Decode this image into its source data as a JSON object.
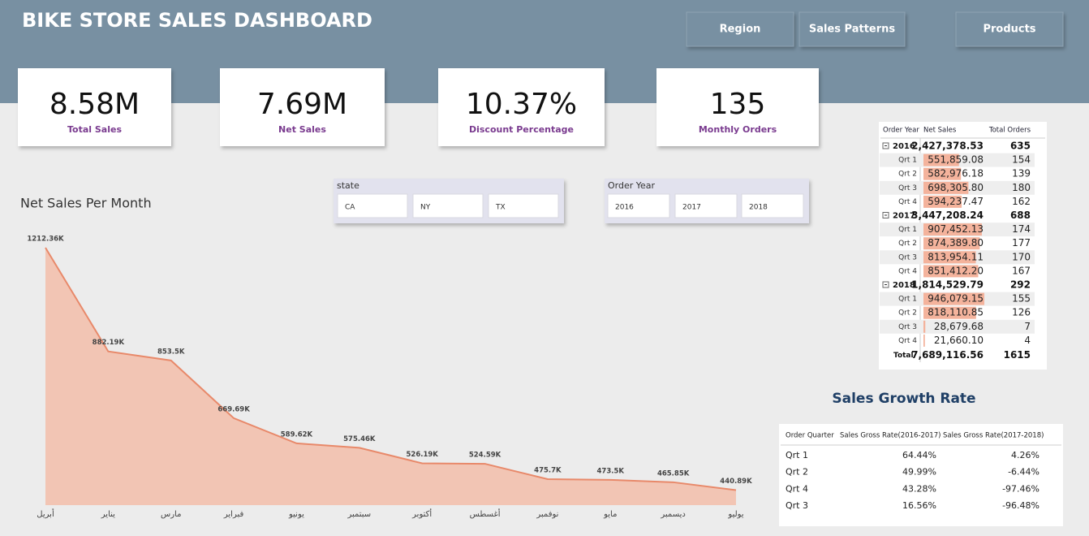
{
  "header": {
    "title": "BIKE STORE SALES DASHBOARD",
    "nav": [
      "Region",
      "Sales Patterns",
      "Products"
    ]
  },
  "kpis": [
    {
      "value": "8.58M",
      "label": "Total Sales"
    },
    {
      "value": "7.69M",
      "label": "Net Sales"
    },
    {
      "value": "10.37%",
      "label": "Discount Percentage"
    },
    {
      "value": "135",
      "label": "Monthly Orders"
    }
  ],
  "slicers": [
    {
      "title": "state",
      "options": [
        "CA",
        "NY",
        "TX"
      ]
    },
    {
      "title": "Order Year",
      "options": [
        "2016",
        "2017",
        "2018"
      ]
    }
  ],
  "chart_data": {
    "type": "area",
    "title": "Net Sales Per Month",
    "categories": [
      "أبريل",
      "يناير",
      "مارس",
      "فبراير",
      "يونيو",
      "سبتمبر",
      "أكتوبر",
      "أغسطس",
      "نوفمبر",
      "مايو",
      "ديسمبر",
      "يوليو"
    ],
    "values": [
      1212.36,
      882.19,
      853.5,
      669.69,
      589.62,
      575.46,
      526.19,
      524.59,
      475.7,
      473.5,
      465.85,
      440.89
    ],
    "value_labels": [
      "1212.36K",
      "882.19K",
      "853.5K",
      "669.69K",
      "589.62K",
      "575.46K",
      "526.19K",
      "524.59K",
      "475.7K",
      "473.5K",
      "465.85K",
      "440.89K"
    ],
    "color": "#e8896a",
    "fill": "#f2c5b4",
    "ylim": [
      393,
      1212.36
    ]
  },
  "matrix": {
    "columns": [
      "Order Year",
      "Net Sales",
      "Total Orders"
    ],
    "groups": [
      {
        "year": "2016",
        "net_sales": {
          "value": 2427378.53,
          "label": "2,427,378.53"
        },
        "orders": "635",
        "quarters": [
          {
            "name": "Qrt 1",
            "net_sales": {
              "value": 551859.08,
              "label": "551,859.08"
            },
            "orders": "154"
          },
          {
            "name": "Qrt 2",
            "net_sales": {
              "value": 582976.18,
              "label": "582,976.18"
            },
            "orders": "139"
          },
          {
            "name": "Qrt 3",
            "net_sales": {
              "value": 698305.8,
              "label": "698,305.80"
            },
            "orders": "180"
          },
          {
            "name": "Qrt 4",
            "net_sales": {
              "value": 594237.47,
              "label": "594,237.47"
            },
            "orders": "162"
          }
        ]
      },
      {
        "year": "2017",
        "net_sales": {
          "value": 3447208.24,
          "label": "3,447,208.24"
        },
        "orders": "688",
        "quarters": [
          {
            "name": "Qrt 1",
            "net_sales": {
              "value": 907452.13,
              "label": "907,452.13"
            },
            "orders": "174"
          },
          {
            "name": "Qrt 2",
            "net_sales": {
              "value": 874389.8,
              "label": "874,389.80"
            },
            "orders": "177"
          },
          {
            "name": "Qrt 3",
            "net_sales": {
              "value": 813954.11,
              "label": "813,954.11"
            },
            "orders": "170"
          },
          {
            "name": "Qrt 4",
            "net_sales": {
              "value": 851412.2,
              "label": "851,412.20"
            },
            "orders": "167"
          }
        ]
      },
      {
        "year": "2018",
        "net_sales": {
          "value": 1814529.79,
          "label": "1,814,529.79"
        },
        "orders": "292",
        "quarters": [
          {
            "name": "Qrt 1",
            "net_sales": {
              "value": 946079.15,
              "label": "946,079.15"
            },
            "orders": "155"
          },
          {
            "name": "Qrt 2",
            "net_sales": {
              "value": 818110.85,
              "label": "818,110.85"
            },
            "orders": "126"
          },
          {
            "name": "Qrt 3",
            "net_sales": {
              "value": 28679.68,
              "label": "28,679.68"
            },
            "orders": "7"
          },
          {
            "name": "Qrt 4",
            "net_sales": {
              "value": 21660.1,
              "label": "21,660.10"
            },
            "orders": "4"
          }
        ]
      }
    ],
    "total": {
      "label": "Total",
      "net_sales": "7,689,116.56",
      "orders": "1615"
    }
  },
  "growth": {
    "title": "Sales Growth Rate",
    "columns": [
      "Order Quarter",
      "Sales Gross Rate(2016-2017)",
      "Sales Gross Rate(2017-2018)"
    ],
    "rows": [
      [
        "Qrt 1",
        "64.44%",
        "4.26%"
      ],
      [
        "Qrt 2",
        "49.99%",
        "-6.44%"
      ],
      [
        "Qrt 4",
        "43.28%",
        "-97.46%"
      ],
      [
        "Qrt 3",
        "16.56%",
        "-96.48%"
      ]
    ]
  }
}
